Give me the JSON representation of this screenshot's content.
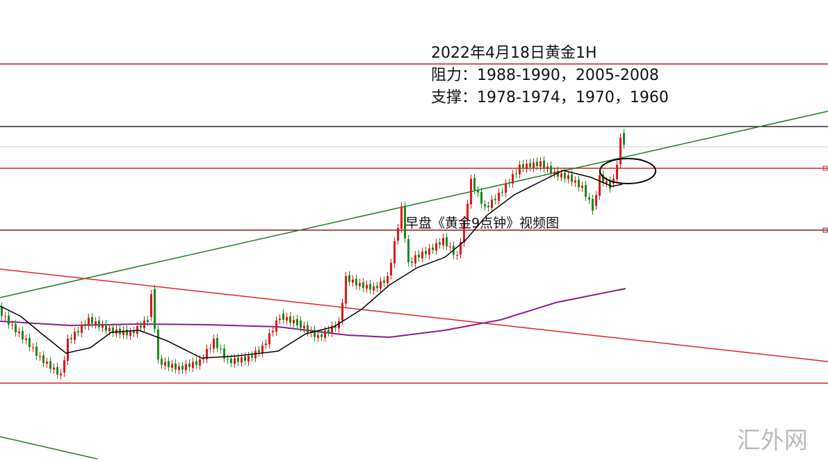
{
  "annotation": {
    "title": "2022年4月18日黄金1H",
    "resistance": "阻力：1988-1990，2005-2008",
    "support": "支撑：1978-1974，1970，1960"
  },
  "caption": "早盘《黄金9点钟》视频图",
  "watermark": "汇外网"
}
